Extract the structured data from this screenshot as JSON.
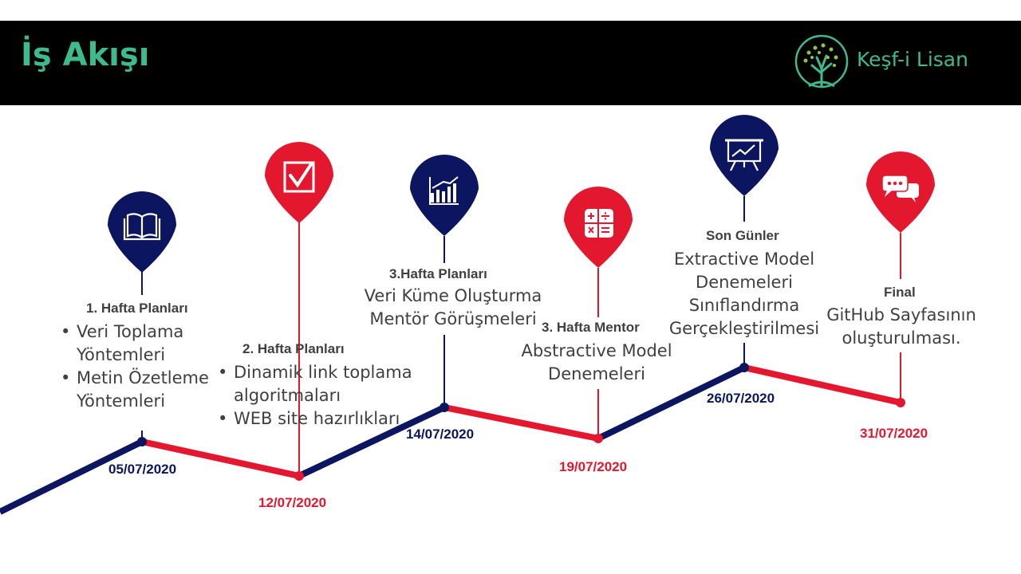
{
  "header": {
    "title": "İş Akışı",
    "logo_text": "Keşf-i Lisan"
  },
  "colors": {
    "navy": "#0b1560",
    "red": "#e3182f",
    "green": "#3dba8e"
  },
  "milestones": [
    {
      "date": "05/07/2020",
      "heading": "1. Hafta Planları",
      "items": [
        "Veri Toplama Yöntemleri",
        "Metin Özetleme Yöntemleri"
      ],
      "item_lines": [
        [
          "Veri Toplama",
          "Yöntemleri"
        ],
        [
          "Metin Özetleme",
          "Yöntemleri"
        ]
      ],
      "icon": "book-icon",
      "color": "navy"
    },
    {
      "date": "12/07/2020",
      "heading": "2. Hafta Planları",
      "items": [
        "Dinamik link toplama algoritmaları",
        "WEB site hazırlıkları"
      ],
      "item_lines": [
        [
          "Dinamik link toplama",
          "algoritmaları"
        ],
        [
          "WEB site hazırlıkları"
        ]
      ],
      "icon": "checkbox-icon",
      "color": "red"
    },
    {
      "date": "14/07/2020",
      "heading": "3.Hafta Planları",
      "lines": [
        "Veri Küme Oluşturma",
        "Mentör Görüşmeleri"
      ],
      "icon": "bar-chart-icon",
      "color": "navy"
    },
    {
      "date": "19/07/2020",
      "heading": "3. Hafta Mentor",
      "lines": [
        "Abstractive Model",
        "Denemeleri"
      ],
      "icon": "calculator-icon",
      "color": "red"
    },
    {
      "date": "26/07/2020",
      "heading": "Son Günler",
      "lines": [
        "Extractive Model",
        "Denemeleri",
        "Sınıflandırma",
        "Gerçekleştirilmesi"
      ],
      "icon": "presentation-board-icon",
      "color": "navy"
    },
    {
      "date": "31/07/2020",
      "heading": "Final",
      "lines": [
        "GitHub Sayfasının",
        "oluşturulması."
      ],
      "icon": "chat-bubbles-icon",
      "color": "red"
    }
  ]
}
